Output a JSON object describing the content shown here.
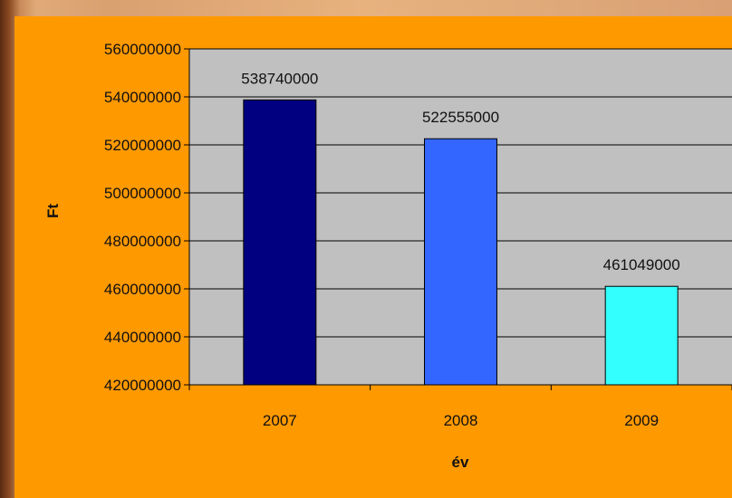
{
  "chart_data": {
    "type": "bar",
    "categories": [
      "2007",
      "2008",
      "2009"
    ],
    "values": [
      538740000,
      522555000,
      461049000
    ],
    "data_labels": [
      "538740000",
      "522555000",
      "461049000"
    ],
    "ylim": [
      420000000,
      560000000
    ],
    "yticks": [
      420000000,
      440000000,
      460000000,
      480000000,
      500000000,
      520000000,
      540000000,
      560000000
    ],
    "ytick_labels": [
      "420000000",
      "440000000",
      "460000000",
      "480000000",
      "500000000",
      "520000000",
      "540000000",
      "560000000"
    ],
    "xlabel": "év",
    "ylabel": "Ft",
    "bar_colors": [
      "#000080",
      "#3366ff",
      "#33ffff"
    ],
    "plot_background": "#c0c0c0",
    "chart_background": "#ff9900",
    "grid": true,
    "legend": "none"
  }
}
